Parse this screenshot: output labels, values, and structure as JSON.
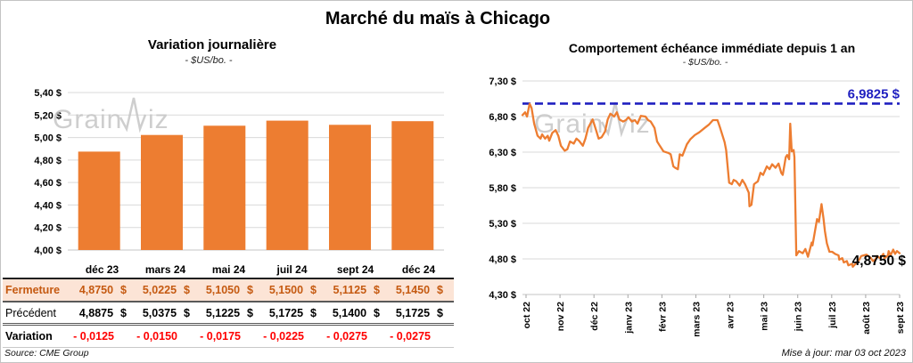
{
  "page": {
    "title": "Marché du maïs à Chicago"
  },
  "watermark": {
    "part1": "Grain",
    "part2": "iz"
  },
  "colors": {
    "orange": "#ED7D31",
    "reference_blue": "#2020C0",
    "negative_red": "#FF0000",
    "fermeture_text": "#C55A11",
    "fermeture_bg": "#FCE4D6",
    "grid": "#D9D9D9",
    "watermark_gray": "#C6C6C6"
  },
  "chart_data": [
    {
      "type": "bar",
      "title": "Variation journalière",
      "subtitle": "- $US/bo. -",
      "xlabel": "",
      "ylabel": "",
      "categories": [
        "déc 23",
        "mars 24",
        "mai 24",
        "juil 24",
        "sept 24",
        "déc 24"
      ],
      "values": [
        4.875,
        5.0225,
        5.105,
        5.15,
        5.1125,
        5.145
      ],
      "ylim": [
        4.0,
        5.4
      ],
      "ytick_values": [
        5.4,
        5.2,
        5.0,
        4.8,
        4.6,
        4.4,
        4.2,
        4.0
      ],
      "ytick_labels": [
        "5,40 $",
        "5,20 $",
        "5,00 $",
        "4,80 $",
        "4,60 $",
        "4,40 $",
        "4,20 $",
        "4,00 $"
      ],
      "grid": true,
      "legend": false,
      "bar_color": "#ED7D31"
    },
    {
      "type": "line",
      "title": "Comportement échéance immédiate depuis 1 an",
      "subtitle": "- $US/bo. -",
      "xlabel": "",
      "ylabel": "",
      "x_tick_labels": [
        "oct 22",
        "nov 22",
        "déc 22",
        "janv 23",
        "févr 23",
        "mars 23",
        "avr 23",
        "mai 23",
        "juin 23",
        "juil 23",
        "août 23",
        "sept 23"
      ],
      "ylim": [
        4.3,
        7.3
      ],
      "ytick_values": [
        7.3,
        6.8,
        6.3,
        5.8,
        5.3,
        4.8,
        4.3
      ],
      "ytick_labels": [
        "7,30 $",
        "6,80 $",
        "6,30 $",
        "5,80 $",
        "5,30 $",
        "4,80 $",
        "4,30 $"
      ],
      "grid": true,
      "legend": false,
      "line_color": "#ED7D31",
      "reference_line": {
        "value": 6.9825,
        "label": "6,9825 $",
        "style": "dashed",
        "color": "#2020C0"
      },
      "end_label": "4,8750 $",
      "series": [
        {
          "name": "échéance immédiate",
          "points": [
            [
              0,
              6.82
            ],
            [
              0.7,
              6.86
            ],
            [
              1.2,
              6.8
            ],
            [
              1.9,
              6.98
            ],
            [
              2.4,
              6.92
            ],
            [
              3.1,
              6.7
            ],
            [
              4,
              6.53
            ],
            [
              4.8,
              6.49
            ],
            [
              5.2,
              6.55
            ],
            [
              6,
              6.49
            ],
            [
              6.7,
              6.53
            ],
            [
              7.1,
              6.46
            ],
            [
              7.9,
              6.57
            ],
            [
              8.8,
              6.61
            ],
            [
              9.5,
              6.53
            ],
            [
              10.2,
              6.39
            ],
            [
              11.2,
              6.32
            ],
            [
              11.9,
              6.34
            ],
            [
              12.6,
              6.45
            ],
            [
              13.6,
              6.42
            ],
            [
              14.3,
              6.49
            ],
            [
              15,
              6.46
            ],
            [
              16,
              6.39
            ],
            [
              16.7,
              6.49
            ],
            [
              17.4,
              6.64
            ],
            [
              18.6,
              6.76
            ],
            [
              19.5,
              6.61
            ],
            [
              20.2,
              6.49
            ],
            [
              21,
              6.51
            ],
            [
              21.9,
              6.59
            ],
            [
              22.6,
              6.76
            ],
            [
              23.3,
              6.84
            ],
            [
              24.3,
              6.8
            ],
            [
              25,
              6.86
            ],
            [
              25.7,
              6.76
            ],
            [
              26.7,
              6.73
            ],
            [
              27.4,
              6.75
            ],
            [
              28.1,
              6.79
            ],
            [
              29,
              6.73
            ],
            [
              29.8,
              6.75
            ],
            [
              30.5,
              6.7
            ],
            [
              31.4,
              6.81
            ],
            [
              32.6,
              6.8
            ],
            [
              33.3,
              6.75
            ],
            [
              34,
              6.73
            ],
            [
              35,
              6.64
            ],
            [
              35.7,
              6.45
            ],
            [
              36.4,
              6.39
            ],
            [
              37.4,
              6.31
            ],
            [
              38.6,
              6.29
            ],
            [
              39.3,
              6.27
            ],
            [
              40,
              6.1
            ],
            [
              40.5,
              6.08
            ],
            [
              41.2,
              6.06
            ],
            [
              41.7,
              6.27
            ],
            [
              42.4,
              6.25
            ],
            [
              43.6,
              6.41
            ],
            [
              44.5,
              6.48
            ],
            [
              45.7,
              6.54
            ],
            [
              46.9,
              6.58
            ],
            [
              48.3,
              6.64
            ],
            [
              49.5,
              6.69
            ],
            [
              50.5,
              6.75
            ],
            [
              51.7,
              6.75
            ],
            [
              52.4,
              6.64
            ],
            [
              53.6,
              6.44
            ],
            [
              54,
              6.33
            ],
            [
              54.8,
              5.87
            ],
            [
              55.5,
              5.85
            ],
            [
              56,
              5.91
            ],
            [
              56.7,
              5.89
            ],
            [
              57.6,
              5.83
            ],
            [
              58.3,
              5.91
            ],
            [
              59,
              5.85
            ],
            [
              60,
              5.73
            ],
            [
              60.2,
              5.54
            ],
            [
              60.7,
              5.56
            ],
            [
              61.4,
              5.85
            ],
            [
              62.4,
              5.89
            ],
            [
              63.1,
              6.01
            ],
            [
              63.8,
              5.98
            ],
            [
              64.8,
              6.1
            ],
            [
              65.5,
              6.06
            ],
            [
              66.2,
              6.13
            ],
            [
              67.1,
              6.08
            ],
            [
              67.9,
              6.14
            ],
            [
              68.6,
              6.01
            ],
            [
              69,
              5.98
            ],
            [
              69.8,
              6.23
            ],
            [
              70.2,
              6.26
            ],
            [
              70.7,
              6.2
            ],
            [
              71,
              6.7
            ],
            [
              71.4,
              6.31
            ],
            [
              71.9,
              6.33
            ],
            [
              72.1,
              6.23
            ],
            [
              72.6,
              4.85
            ],
            [
              73.3,
              4.91
            ],
            [
              74.3,
              4.88
            ],
            [
              75,
              4.94
            ],
            [
              75.7,
              4.83
            ],
            [
              76.7,
              5.03
            ],
            [
              76.9,
              4.99
            ],
            [
              78.1,
              5.36
            ],
            [
              78.6,
              5.32
            ],
            [
              79.3,
              5.57
            ],
            [
              79.8,
              5.37
            ],
            [
              80.2,
              5.19
            ],
            [
              80.7,
              5.02
            ],
            [
              81.4,
              4.9
            ],
            [
              82.1,
              4.9
            ],
            [
              82.9,
              4.87
            ],
            [
              83.8,
              4.85
            ],
            [
              84,
              4.79
            ],
            [
              84.8,
              4.81
            ],
            [
              85.2,
              4.75
            ],
            [
              86,
              4.77
            ],
            [
              86.4,
              4.71
            ],
            [
              87.4,
              4.73
            ],
            [
              87.6,
              4.69
            ],
            [
              88.6,
              4.75
            ],
            [
              89.3,
              4.79
            ],
            [
              89.8,
              4.84
            ],
            [
              90.5,
              4.85
            ],
            [
              91.2,
              4.86
            ],
            [
              91.7,
              4.84
            ],
            [
              92.4,
              4.81
            ],
            [
              92.9,
              4.77
            ],
            [
              93.6,
              4.79
            ],
            [
              94,
              4.84
            ],
            [
              94.8,
              4.81
            ],
            [
              95.7,
              4.87
            ],
            [
              96,
              4.81
            ],
            [
              96.9,
              4.85
            ],
            [
              97.1,
              4.91
            ],
            [
              97.6,
              4.85
            ],
            [
              98.3,
              4.93
            ],
            [
              98.8,
              4.87
            ],
            [
              99.3,
              4.91
            ],
            [
              100,
              4.88
            ]
          ]
        }
      ]
    }
  ],
  "table": {
    "col_headers": [
      "déc 23",
      "mars 24",
      "mai 24",
      "juil 24",
      "sept 24",
      "déc 24"
    ],
    "rows": [
      {
        "key": "fermeture",
        "label": "Fermeture",
        "values": [
          "4,8750",
          "5,0225",
          "5,1050",
          "5,1500",
          "5,1125",
          "5,1450"
        ],
        "unit": "$"
      },
      {
        "key": "precedent",
        "label": "Précédent",
        "values": [
          "4,8875",
          "5,0375",
          "5,1225",
          "5,1725",
          "5,1400",
          "5,1725"
        ],
        "unit": "$"
      },
      {
        "key": "variation",
        "label": "Variation",
        "values": [
          "- 0,0125",
          "- 0,0150",
          "- 0,0175",
          "- 0,0225",
          "- 0,0275",
          "- 0,0275"
        ],
        "unit": ""
      }
    ],
    "source": "Source: CME Group"
  },
  "footer": {
    "updated": "Mise à jour: mar 03 oct 2023"
  }
}
